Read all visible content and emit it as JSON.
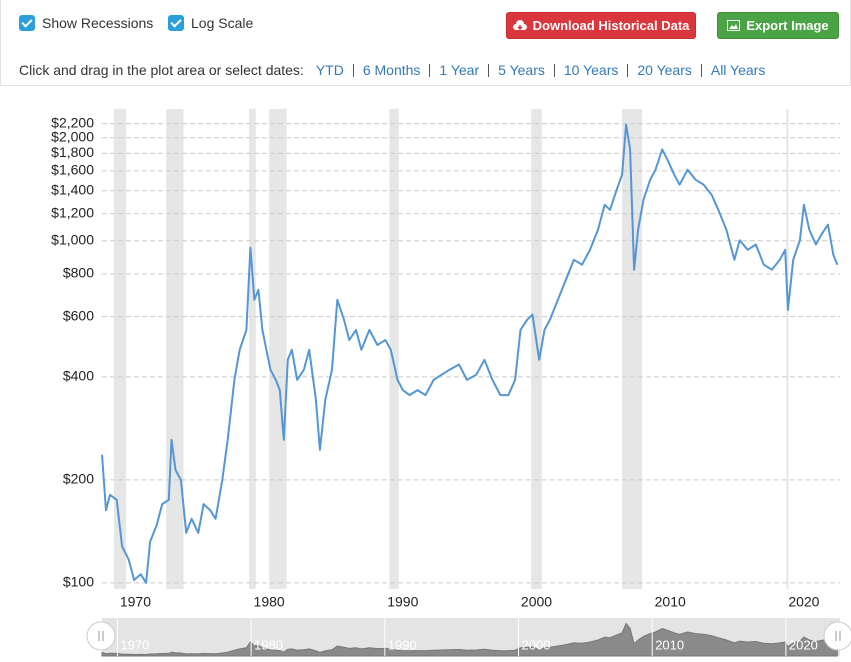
{
  "toolbar": {
    "show_recessions": {
      "label": "Show Recessions",
      "checked": true
    },
    "log_scale": {
      "label": "Log Scale",
      "checked": true
    },
    "download_button": "Download Historical Data",
    "export_button": "Export Image"
  },
  "date_range": {
    "prompt": "Click and drag in the plot area or select dates:",
    "options": [
      "YTD",
      "6 Months",
      "1 Year",
      "5 Years",
      "10 Years",
      "20 Years",
      "All Years"
    ]
  },
  "chart_data": {
    "type": "line",
    "color": "#5596d4",
    "log_scale": true,
    "grid": true,
    "recession_color": "#e6e6e6",
    "x": [
      1967.5,
      1967.8,
      1968.1,
      1968.6,
      1969.0,
      1969.5,
      1969.9,
      1970.4,
      1970.8,
      1971.1,
      1971.6,
      1972.0,
      1972.5,
      1972.7,
      1973.0,
      1973.4,
      1973.8,
      1974.2,
      1974.7,
      1975.1,
      1975.6,
      1976.0,
      1976.5,
      1976.9,
      1977.4,
      1977.8,
      1978.3,
      1978.6,
      1978.9,
      1979.2,
      1979.5,
      1979.8,
      1980.1,
      1980.5,
      1980.8,
      1981.1,
      1981.4,
      1981.7,
      1982.1,
      1982.6,
      1983.0,
      1983.5,
      1983.8,
      1984.2,
      1984.7,
      1985.1,
      1985.6,
      1986.0,
      1986.5,
      1986.9,
      1987.5,
      1988.1,
      1988.7,
      1989.1,
      1989.6,
      1990.0,
      1990.5,
      1991.1,
      1991.7,
      1992.3,
      1992.9,
      1993.5,
      1994.2,
      1994.8,
      1995.5,
      1996.1,
      1996.7,
      1997.3,
      1997.9,
      1998.4,
      1998.8,
      1999.3,
      1999.7,
      2000.2,
      2000.6,
      2001.0,
      2001.6,
      2002.2,
      2002.8,
      2003.4,
      2004.0,
      2004.6,
      2005.1,
      2005.5,
      2006.0,
      2006.4,
      2006.7,
      2007.0,
      2007.3,
      2007.6,
      2008.0,
      2008.5,
      2008.9,
      2009.4,
      2009.8,
      2010.3,
      2010.7,
      2011.3,
      2011.9,
      2012.5,
      2013.1,
      2013.6,
      2014.2,
      2014.8,
      2015.2,
      2015.8,
      2016.4,
      2017.0,
      2017.6,
      2018.2,
      2018.6,
      2018.8,
      2019.2,
      2019.7,
      2020.0,
      2020.4,
      2020.9,
      2021.3,
      2021.8,
      2022.2,
      2022.5
    ],
    "values": [
      237,
      163,
      181,
      175,
      128,
      117,
      102,
      106,
      100,
      132,
      148,
      170,
      175,
      262,
      214,
      200,
      140,
      154,
      140,
      170,
      163,
      154,
      200,
      262,
      392,
      480,
      549,
      954,
      672,
      719,
      549,
      480,
      420,
      392,
      366,
      262,
      449,
      480,
      392,
      420,
      480,
      343,
      245,
      343,
      420,
      672,
      588,
      513,
      549,
      480,
      549,
      496,
      513,
      480,
      392,
      366,
      354,
      366,
      354,
      392,
      406,
      420,
      435,
      392,
      406,
      449,
      392,
      354,
      354,
      392,
      549,
      588,
      608,
      449,
      549,
      588,
      672,
      769,
      880,
      851,
      941,
      1077,
      1274,
      1232,
      1409,
      1560,
      2185,
      1850,
      823,
      1077,
      1319,
      1508,
      1613,
      1850,
      1726,
      1560,
      1458,
      1613,
      1508,
      1458,
      1362,
      1232,
      1077,
      880,
      1003,
      941,
      975,
      851,
      823,
      880,
      941,
      628,
      880,
      1003,
      1274,
      1077,
      975,
      1042,
      1114,
      911,
      851
    ],
    "recessions": [
      [
        1968.4,
        1969.3
      ],
      [
        1972.3,
        1973.6
      ],
      [
        1978.5,
        1979.0
      ],
      [
        1980.0,
        1981.3
      ],
      [
        1989.0,
        1989.7
      ],
      [
        1999.6,
        2000.4
      ],
      [
        2006.4,
        2007.9
      ],
      [
        2018.7,
        2018.8
      ]
    ],
    "xlim": [
      1967.5,
      2022.7
    ],
    "xticks": [
      1970,
      1980,
      1990,
      2000,
      2010,
      2020
    ],
    "ylim": [
      96,
      2300
    ],
    "yticks": [
      {
        "value": 100,
        "label": "$100"
      },
      {
        "value": 200,
        "label": "$200"
      },
      {
        "value": 400,
        "label": "$400"
      },
      {
        "value": 600,
        "label": "$600"
      },
      {
        "value": 800,
        "label": "$800"
      },
      {
        "value": 1000,
        "label": "$1,000"
      },
      {
        "value": 1200,
        "label": "$1,200"
      },
      {
        "value": 1400,
        "label": "$1,400"
      },
      {
        "value": 1600,
        "label": "$1,600"
      },
      {
        "value": 1800,
        "label": "$1,800"
      },
      {
        "value": 2000,
        "label": "$2,000"
      },
      {
        "value": 2200,
        "label": "$2,200"
      }
    ]
  }
}
